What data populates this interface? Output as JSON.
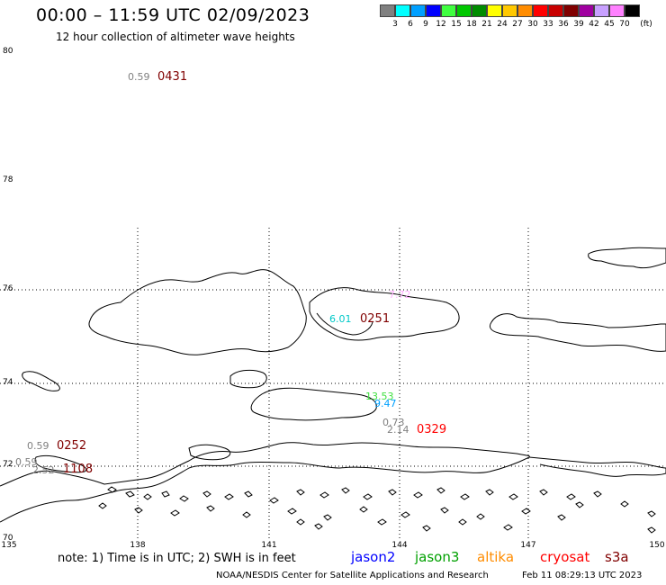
{
  "header": {
    "title": "00:00 – 11:59 UTC 02/09/2023",
    "subtitle": "12 hour collection of altimeter wave heights"
  },
  "scale": {
    "unit_label": "(ft)",
    "steps": [
      {
        "label": "3",
        "color": "#808080"
      },
      {
        "label": "6",
        "color": "#00ffff"
      },
      {
        "label": "9",
        "color": "#00a0ff"
      },
      {
        "label": "12",
        "color": "#0000ff"
      },
      {
        "label": "15",
        "color": "#40ff40"
      },
      {
        "label": "18",
        "color": "#00c800"
      },
      {
        "label": "21",
        "color": "#008c00"
      },
      {
        "label": "24",
        "color": "#ffff00"
      },
      {
        "label": "27",
        "color": "#ffc800"
      },
      {
        "label": "30",
        "color": "#ff8c00"
      },
      {
        "label": "33",
        "color": "#ff0000"
      },
      {
        "label": "36",
        "color": "#c80000"
      },
      {
        "label": "39",
        "color": "#800000"
      },
      {
        "label": "42",
        "color": "#a000a0"
      },
      {
        "label": "45",
        "color": "#c8a0ff"
      },
      {
        "label": "70",
        "color": "#ff80ff"
      },
      {
        "label": "",
        "color": "#000000"
      }
    ]
  },
  "axes": {
    "lat_labels": [
      "80",
      "78",
      "76",
      "74",
      "72",
      "70"
    ],
    "lon_labels": [
      "135",
      "138",
      "141",
      "144",
      "147",
      "150"
    ]
  },
  "observations": [
    {
      "height": "0.59",
      "time": "0431",
      "height_color": "#808080",
      "time_color": "#800000"
    },
    {
      "height": "7.72",
      "time": "",
      "height_color": "#ffb0ff",
      "time_color": "#000000"
    },
    {
      "height": "6.01",
      "time": "0251",
      "height_color": "#00c8c8",
      "time_color": "#800000"
    },
    {
      "height": "13.53",
      "time": "",
      "height_color": "#40e040",
      "time_color": "#000000"
    },
    {
      "height": "9.47",
      "time": "",
      "height_color": "#00a0ff",
      "time_color": "#000000"
    },
    {
      "height": "0.73",
      "time": "",
      "height_color": "#808080",
      "time_color": "#000000"
    },
    {
      "height": "2.14",
      "time": "0329",
      "height_color": "#808080",
      "time_color": "#ff0000"
    },
    {
      "height": "0.59",
      "time": "0252",
      "height_color": "#808080",
      "time_color": "#800000"
    },
    {
      "height": "0.59",
      "time": "",
      "height_color": "#808080",
      "time_color": "#000000"
    },
    {
      "height": "2.52",
      "time": "1108",
      "height_color": "#808080",
      "time_color": "#800000"
    }
  ],
  "note": "note: 1) Time is in UTC; 2) SWH is in feet",
  "satellites": [
    {
      "name": "jason2",
      "color": "#0000ff"
    },
    {
      "name": "jason3",
      "color": "#00a000"
    },
    {
      "name": "altika",
      "color": "#ff8c00"
    },
    {
      "name": "cryosat",
      "color": "#ff0000"
    },
    {
      "name": "s3a",
      "color": "#800000"
    }
  ],
  "footer": {
    "credit": "NOAA/NESDIS Center for Satellite Applications and Research",
    "timestamp": "Feb 11 08:29:13 UTC 2023"
  }
}
